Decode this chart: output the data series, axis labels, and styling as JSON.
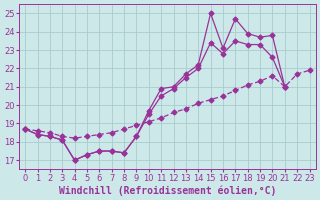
{
  "x": [
    0,
    1,
    2,
    3,
    4,
    5,
    6,
    7,
    8,
    9,
    10,
    11,
    12,
    13,
    14,
    15,
    16,
    17,
    18,
    19,
    20,
    21
  ],
  "x_full": [
    0,
    1,
    2,
    3,
    4,
    5,
    6,
    7,
    8,
    9,
    10,
    11,
    12,
    13,
    14,
    15,
    16,
    17,
    18,
    19,
    20,
    21,
    22,
    23
  ],
  "line_upper": [
    18.7,
    18.4,
    18.3,
    18.1,
    17.0,
    17.3,
    17.5,
    17.5,
    17.4,
    18.3,
    19.7,
    20.9,
    21.0,
    21.7,
    22.2,
    25.0,
    23.1,
    24.7,
    23.9,
    23.7,
    23.8,
    21.0
  ],
  "line_mid": [
    18.7,
    18.4,
    18.3,
    18.1,
    17.0,
    17.3,
    17.5,
    17.5,
    17.4,
    18.3,
    19.5,
    20.5,
    20.9,
    21.5,
    22.0,
    23.4,
    22.8,
    23.5,
    23.3,
    23.3,
    22.6,
    21.0
  ],
  "line_lower": [
    18.7,
    18.6,
    18.5,
    18.3,
    18.2,
    18.3,
    18.4,
    18.5,
    18.7,
    18.9,
    19.1,
    19.3,
    19.6,
    19.8,
    20.1,
    20.3,
    20.5,
    20.8,
    21.1,
    21.3,
    21.6,
    21.0,
    21.7,
    21.9
  ],
  "bg_color": "#cce8e8",
  "grid_color": "#aacccc",
  "line_color": "#993399",
  "ylim": [
    16.5,
    25.5
  ],
  "xlim": [
    -0.5,
    23.5
  ],
  "yticks": [
    17,
    18,
    19,
    20,
    21,
    22,
    23,
    24,
    25
  ],
  "xticks": [
    0,
    1,
    2,
    3,
    4,
    5,
    6,
    7,
    8,
    9,
    10,
    11,
    12,
    13,
    14,
    15,
    16,
    17,
    18,
    19,
    20,
    21,
    22,
    23
  ],
  "tick_fontsize": 6,
  "xlabel_fontsize": 7,
  "xlabel": "Windchill (Refroidissement éolien,°C)"
}
